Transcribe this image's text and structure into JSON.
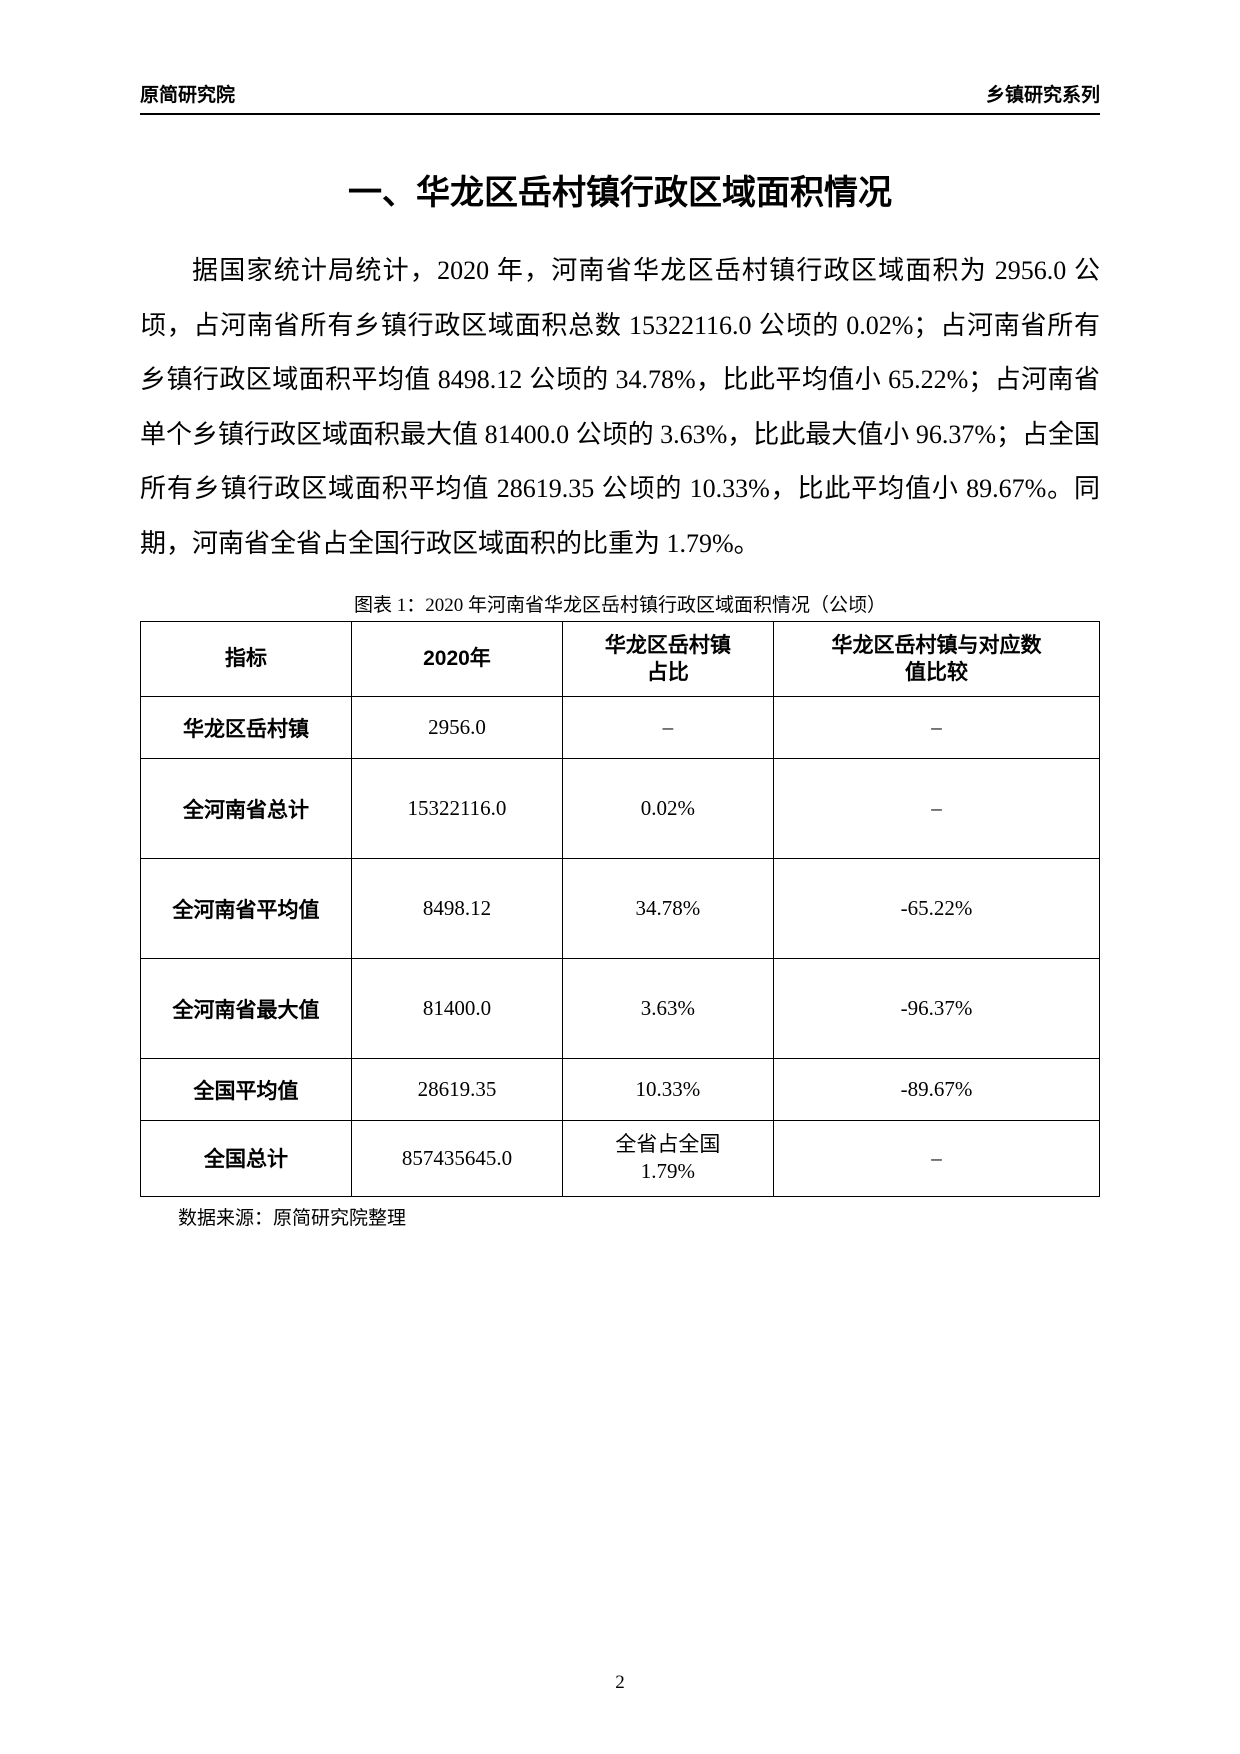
{
  "header": {
    "left": "原简研究院",
    "right": "乡镇研究系列"
  },
  "title": "一、华龙区岳村镇行政区域面积情况",
  "paragraph": "据国家统计局统计，2020 年，河南省华龙区岳村镇行政区域面积为 2956.0 公顷，占河南省所有乡镇行政区域面积总数 15322116.0 公顷的 0.02%；占河南省所有乡镇行政区域面积平均值 8498.12 公顷的 34.78%，比此平均值小 65.22%；占河南省单个乡镇行政区域面积最大值 81400.0 公顷的 3.63%，比此最大值小 96.37%；占全国所有乡镇行政区域面积平均值 28619.35 公顷的 10.33%，比此平均值小 89.67%。同期，河南省全省占全国行政区域面积的比重为 1.79%。",
  "table": {
    "caption": "图表 1：2020 年河南省华龙区岳村镇行政区域面积情况（公顷）",
    "columns": [
      "指标",
      "2020年",
      "华龙区岳村镇\n占比",
      "华龙区岳村镇与对应数\n值比较"
    ],
    "rows": [
      {
        "label": "华龙区岳村镇",
        "year": "2956.0",
        "ratio": "–",
        "compare": "–",
        "tall": false
      },
      {
        "label": "全河南省总计",
        "year": "15322116.0",
        "ratio": "0.02%",
        "compare": "–",
        "tall": true
      },
      {
        "label": "全河南省平均值",
        "year": "8498.12",
        "ratio": "34.78%",
        "compare": "-65.22%",
        "tall": true
      },
      {
        "label": "全河南省最大值",
        "year": "81400.0",
        "ratio": "3.63%",
        "compare": "-96.37%",
        "tall": true
      },
      {
        "label": "全国平均值",
        "year": "28619.35",
        "ratio": "10.33%",
        "compare": "-89.67%",
        "tall": false
      },
      {
        "label": "全国总计",
        "year": "857435645.0",
        "ratio": "全省占全国\n1.79%",
        "compare": "–",
        "tall": false
      }
    ]
  },
  "source": "数据来源：原简研究院整理",
  "page_number": "2"
}
